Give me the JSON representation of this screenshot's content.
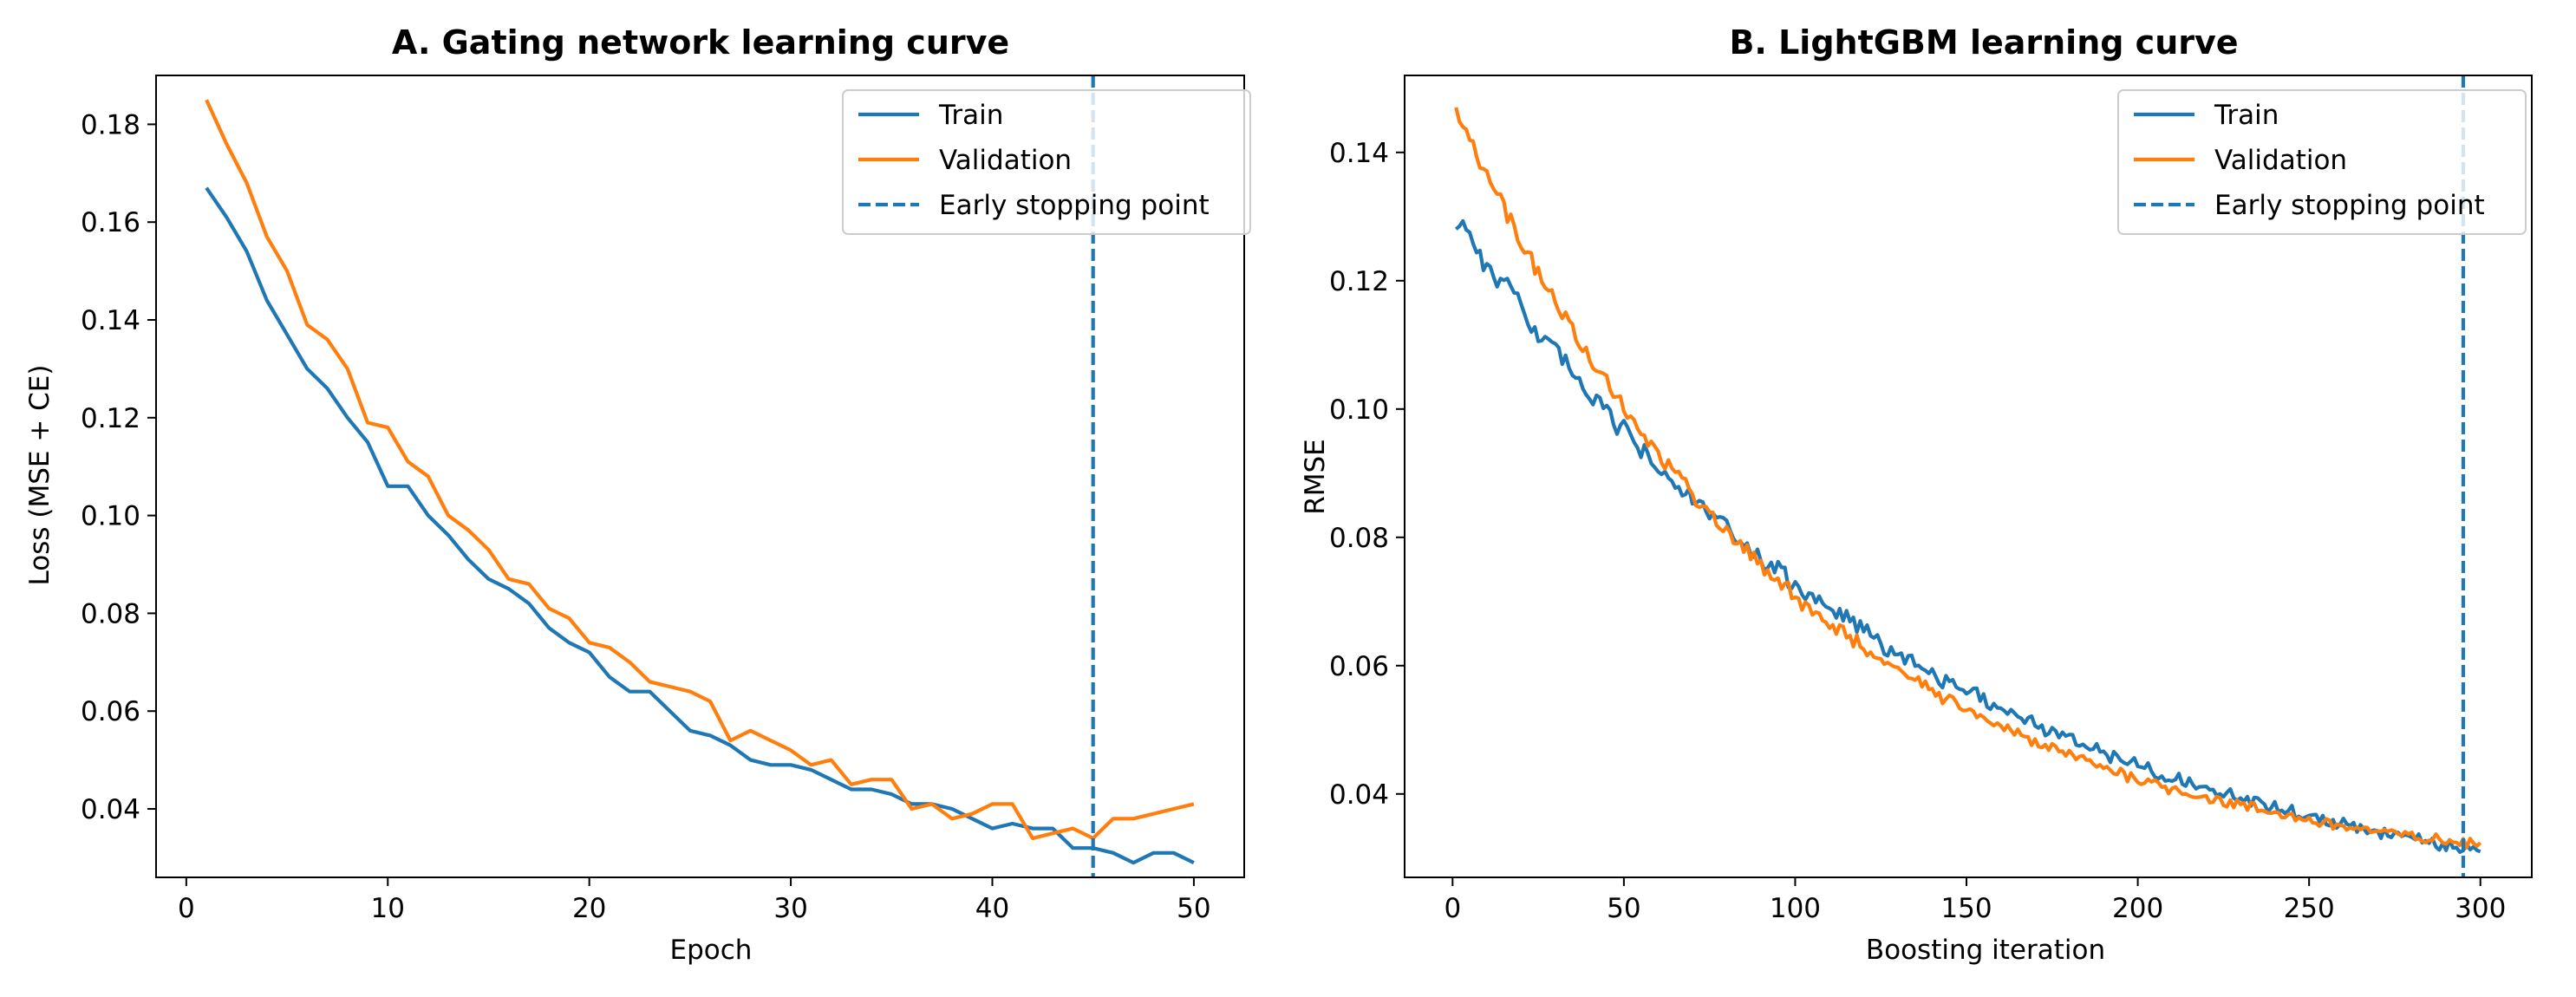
{
  "colors": {
    "train": "#1f77b4",
    "validation": "#ff7f0e",
    "early_stop": "#1f77b4"
  },
  "chart_data": [
    {
      "type": "line",
      "title": "A. Gating network learning curve",
      "xlabel": "Epoch",
      "ylabel": "Loss (MSE + CE)",
      "xlim": [
        -1.5,
        52.5
      ],
      "ylim": [
        0.026,
        0.19
      ],
      "xticks": [
        0,
        10,
        20,
        30,
        40,
        50
      ],
      "yticks": [
        0.04,
        0.06,
        0.08,
        0.1,
        0.12,
        0.14,
        0.16,
        0.18
      ],
      "ytick_labels": [
        "0.04",
        "0.06",
        "0.08",
        "0.10",
        "0.12",
        "0.14",
        "0.16",
        "0.18"
      ],
      "legend_position": "upper right",
      "grid": false,
      "x": [
        1,
        2,
        3,
        4,
        5,
        6,
        7,
        8,
        9,
        10,
        11,
        12,
        13,
        14,
        15,
        16,
        17,
        18,
        19,
        20,
        21,
        22,
        23,
        24,
        25,
        26,
        27,
        28,
        29,
        30,
        31,
        32,
        33,
        34,
        35,
        36,
        37,
        38,
        39,
        40,
        41,
        42,
        43,
        44,
        45,
        46,
        47,
        48,
        49,
        50
      ],
      "series": [
        {
          "name": "Train",
          "color_key": "train",
          "values": [
            0.167,
            0.161,
            0.154,
            0.144,
            0.137,
            0.13,
            0.126,
            0.12,
            0.115,
            0.106,
            0.106,
            0.1,
            0.096,
            0.091,
            0.087,
            0.085,
            0.082,
            0.077,
            0.074,
            0.072,
            0.067,
            0.064,
            0.064,
            0.06,
            0.056,
            0.055,
            0.053,
            0.05,
            0.049,
            0.049,
            0.048,
            0.046,
            0.044,
            0.044,
            0.043,
            0.041,
            0.041,
            0.04,
            0.038,
            0.036,
            0.037,
            0.036,
            0.036,
            0.032,
            0.032,
            0.031,
            0.029,
            0.031,
            0.031,
            0.029
          ]
        },
        {
          "name": "Validation",
          "color_key": "validation",
          "values": [
            0.185,
            0.176,
            0.168,
            0.157,
            0.15,
            0.139,
            0.136,
            0.13,
            0.119,
            0.118,
            0.111,
            0.108,
            0.1,
            0.097,
            0.093,
            0.087,
            0.086,
            0.081,
            0.079,
            0.074,
            0.073,
            0.07,
            0.066,
            0.065,
            0.064,
            0.062,
            0.054,
            0.056,
            0.054,
            0.052,
            0.049,
            0.05,
            0.045,
            0.046,
            0.046,
            0.04,
            0.041,
            0.038,
            0.039,
            0.041,
            0.041,
            0.034,
            0.035,
            0.036,
            0.034,
            0.038,
            0.038,
            0.039,
            0.04,
            0.041
          ]
        }
      ],
      "vline": {
        "x": 45,
        "label": "Early stopping point",
        "color_key": "early_stop"
      }
    },
    {
      "type": "line",
      "title": "B. LightGBM learning curve",
      "xlabel": "Boosting iteration",
      "ylabel": "RMSE",
      "xlim": [
        -14,
        315
      ],
      "ylim": [
        0.027,
        0.152
      ],
      "xticks": [
        0,
        50,
        100,
        150,
        200,
        250,
        300
      ],
      "yticks": [
        0.04,
        0.06,
        0.08,
        0.1,
        0.12,
        0.14
      ],
      "ytick_labels": [
        "0.04",
        "0.06",
        "0.08",
        "0.10",
        "0.12",
        "0.14"
      ],
      "legend_position": "upper right",
      "grid": false,
      "x_range": [
        1,
        300
      ],
      "series": [
        {
          "name": "Train",
          "color_key": "train",
          "start": 0.13,
          "end": 0.031,
          "decay_rate": 0.0073,
          "noise": 0.0016
        },
        {
          "name": "Validation",
          "color_key": "validation",
          "start": 0.147,
          "end": 0.032,
          "decay_rate": 0.01,
          "noise": 0.0014
        }
      ],
      "vline": {
        "x": 295,
        "label": "Early stopping point",
        "color_key": "early_stop"
      }
    }
  ]
}
